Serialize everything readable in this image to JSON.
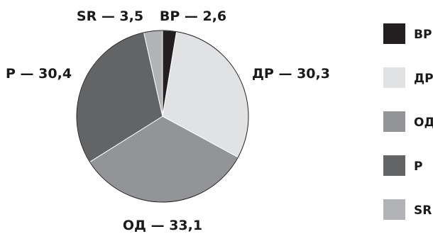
{
  "chart_data": {
    "type": "pie",
    "title": "",
    "slices": [
      {
        "label": "ВР",
        "value": 2.6,
        "display": "ВР — 2,6",
        "color": "#231f20"
      },
      {
        "label": "ДР",
        "value": 30.3,
        "display": "ДР — 30,3",
        "color": "#e1e2e4"
      },
      {
        "label": "ОД",
        "value": 33.1,
        "display": "ОД — 33,1",
        "color": "#929497"
      },
      {
        "label": "Р",
        "value": 30.4,
        "display": "Р — 30,4",
        "color": "#636466"
      },
      {
        "label": "SR",
        "value": 3.5,
        "display": "SR — 3,5",
        "color": "#b1b3b6"
      }
    ],
    "legend": {
      "placement": "right",
      "items": [
        "ВР",
        "ДР",
        "ОД",
        "Р",
        "SR"
      ]
    }
  }
}
